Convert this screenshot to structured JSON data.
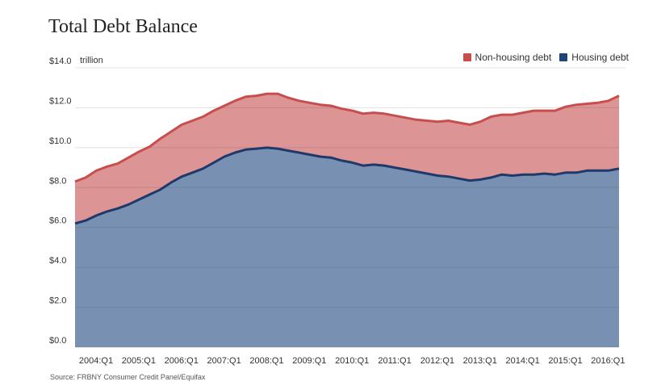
{
  "title": "Total Debt Balance",
  "unit_label": "trillion",
  "source": "Source: FRBNY Consumer Credit Panel/Equifax",
  "colors": {
    "housing_fill": "#7891b2",
    "housing_line": "#1f3a6a",
    "nonhousing_fill": "#dc9594",
    "nonhousing_line": "#c84e4e",
    "gridline": "#e6e6e6"
  },
  "legend": [
    {
      "label": "Non-housing debt",
      "color": "#c84e4e"
    },
    {
      "label": "Housing debt",
      "color": "#1f4477"
    }
  ],
  "chart_data": {
    "type": "area",
    "stacked": false,
    "ylim": [
      0,
      14
    ],
    "y_ticks": [
      0,
      2,
      4,
      6,
      8,
      10,
      12,
      14
    ],
    "y_tick_labels": [
      "$0.0",
      "$2.0",
      "$4.0",
      "$6.0",
      "$8.0",
      "$10.0",
      "$12.0",
      "$14.0"
    ],
    "x_tick_labels": [
      "2004:Q1",
      "2005:Q1",
      "2006:Q1",
      "2007:Q1",
      "2008:Q1",
      "2009:Q1",
      "2010:Q1",
      "2011:Q1",
      "2012:Q1",
      "2013:Q1",
      "2014:Q1",
      "2015:Q1",
      "2016:Q1"
    ],
    "x": [
      "2004:Q1",
      "2004:Q2",
      "2004:Q3",
      "2004:Q4",
      "2005:Q1",
      "2005:Q2",
      "2005:Q3",
      "2005:Q4",
      "2006:Q1",
      "2006:Q2",
      "2006:Q3",
      "2006:Q4",
      "2007:Q1",
      "2007:Q2",
      "2007:Q3",
      "2007:Q4",
      "2008:Q1",
      "2008:Q2",
      "2008:Q3",
      "2008:Q4",
      "2009:Q1",
      "2009:Q2",
      "2009:Q3",
      "2009:Q4",
      "2010:Q1",
      "2010:Q2",
      "2010:Q3",
      "2010:Q4",
      "2011:Q1",
      "2011:Q2",
      "2011:Q3",
      "2011:Q4",
      "2012:Q1",
      "2012:Q2",
      "2012:Q3",
      "2012:Q4",
      "2013:Q1",
      "2013:Q2",
      "2013:Q3",
      "2013:Q4",
      "2014:Q1",
      "2014:Q2",
      "2014:Q3",
      "2014:Q4",
      "2015:Q1",
      "2015:Q2",
      "2015:Q3",
      "2015:Q4",
      "2016:Q1",
      "2016:Q2",
      "2016:Q3",
      "2016:Q4"
    ],
    "series": [
      {
        "name": "Non-housing debt",
        "role": "total",
        "values": [
          8.3,
          8.5,
          8.85,
          9.05,
          9.2,
          9.5,
          9.8,
          10.05,
          10.45,
          10.8,
          11.15,
          11.35,
          11.55,
          11.85,
          12.1,
          12.35,
          12.55,
          12.6,
          12.7,
          12.7,
          12.5,
          12.35,
          12.25,
          12.15,
          12.1,
          11.95,
          11.85,
          11.7,
          11.75,
          11.7,
          11.6,
          11.5,
          11.4,
          11.35,
          11.3,
          11.35,
          11.25,
          11.15,
          11.3,
          11.55,
          11.65,
          11.65,
          11.75,
          11.85,
          11.85,
          11.85,
          12.05,
          12.15,
          12.2,
          12.25,
          12.35,
          12.6
        ]
      },
      {
        "name": "Housing debt",
        "role": "housing",
        "values": [
          6.2,
          6.35,
          6.6,
          6.8,
          6.95,
          7.15,
          7.4,
          7.65,
          7.9,
          8.25,
          8.55,
          8.75,
          8.95,
          9.25,
          9.55,
          9.75,
          9.9,
          9.95,
          10.0,
          9.95,
          9.85,
          9.75,
          9.65,
          9.55,
          9.5,
          9.35,
          9.25,
          9.1,
          9.15,
          9.1,
          9.0,
          8.9,
          8.8,
          8.7,
          8.6,
          8.55,
          8.45,
          8.35,
          8.4,
          8.5,
          8.65,
          8.6,
          8.65,
          8.65,
          8.7,
          8.65,
          8.75,
          8.75,
          8.85,
          8.85,
          8.85,
          8.95
        ]
      }
    ]
  }
}
